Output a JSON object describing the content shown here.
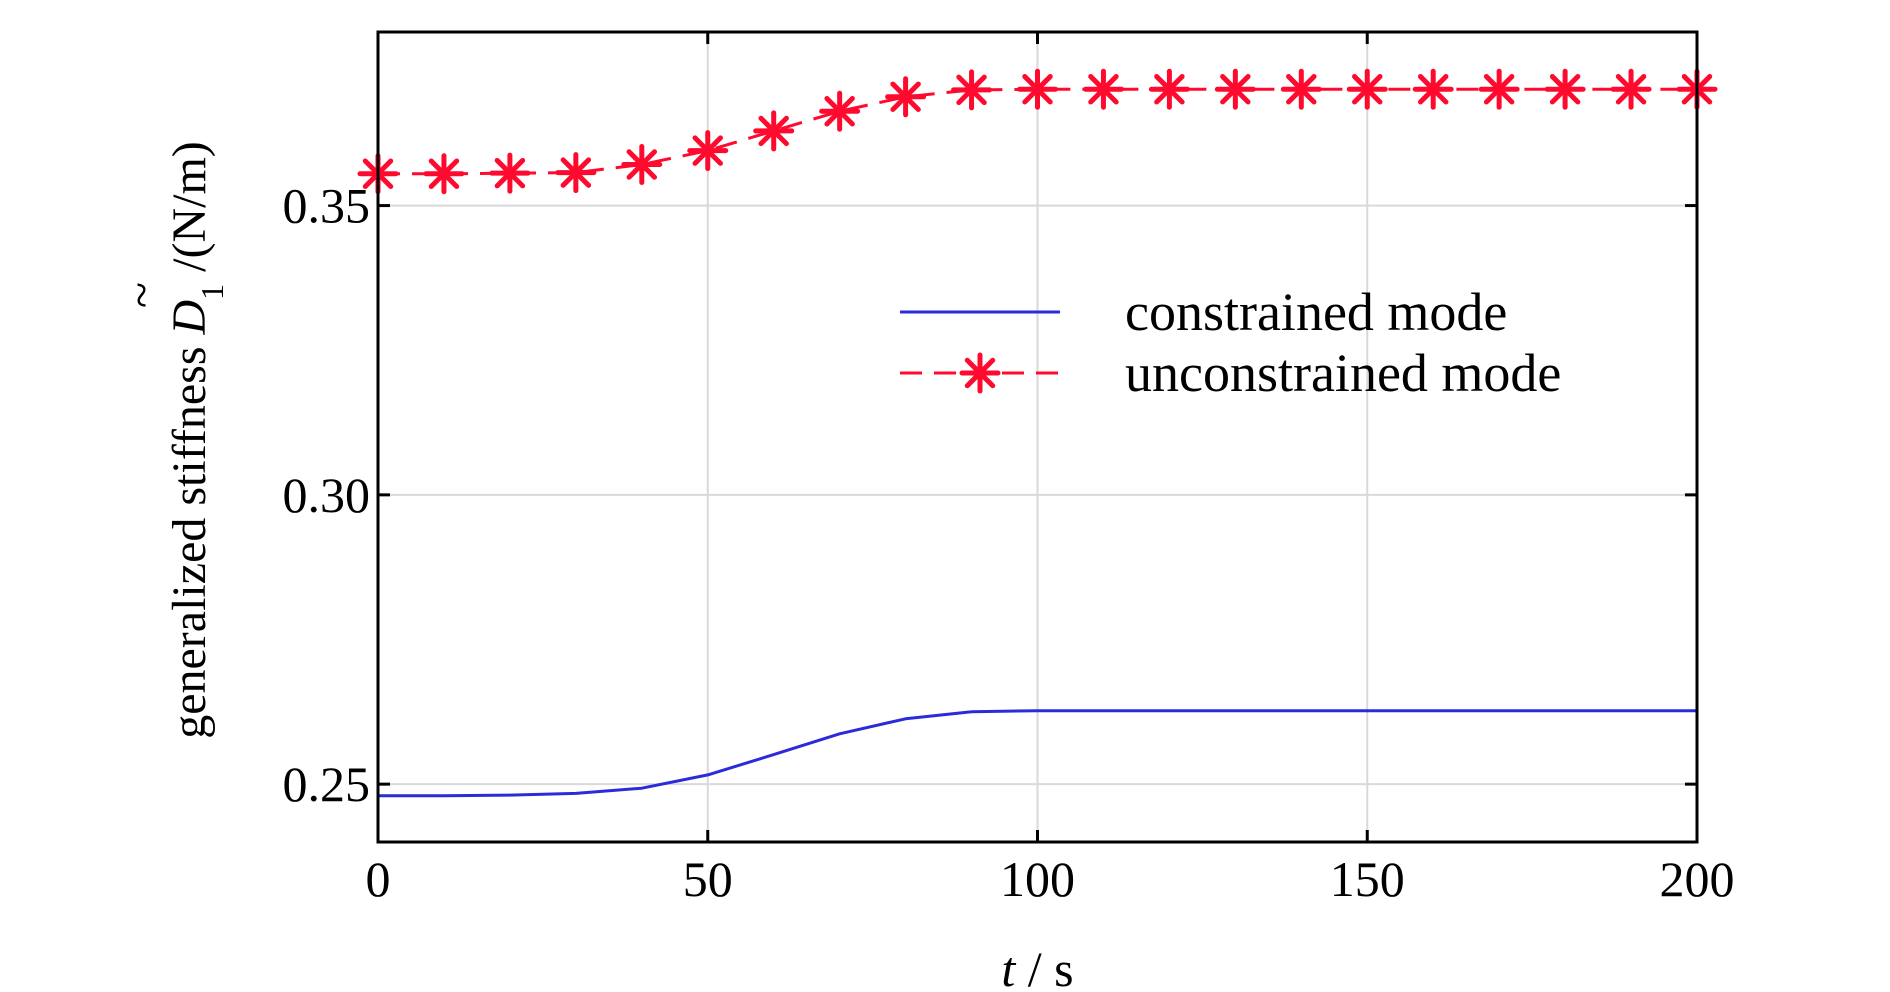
{
  "chart_data": {
    "type": "line",
    "xlabel": {
      "var": "t",
      "sep": " / ",
      "unit": "s"
    },
    "ylabel": {
      "prefix": "generalized stiffness ",
      "var": "D",
      "tilde": "~",
      "sub": "1",
      "suffix": " /(N/m)"
    },
    "xlim": [
      0,
      200
    ],
    "ylim": [
      0.24,
      0.38
    ],
    "x_ticks": [
      "0",
      "50",
      "100",
      "150",
      "200"
    ],
    "y_ticks": [
      "0.25",
      "0.30",
      "0.35"
    ],
    "grid": true,
    "legend_position": "center-right",
    "series": [
      {
        "name": "constrained mode",
        "color": "#2b2bd9",
        "style": "solid",
        "marker": "none",
        "x": [
          0,
          10,
          20,
          30,
          40,
          50,
          60,
          70,
          80,
          90,
          100,
          110,
          120,
          130,
          140,
          150,
          160,
          170,
          180,
          190,
          200
        ],
        "y": [
          0.248,
          0.248,
          0.2481,
          0.2484,
          0.2493,
          0.2516,
          0.2551,
          0.2587,
          0.2613,
          0.2625,
          0.2627,
          0.2627,
          0.2627,
          0.2627,
          0.2627,
          0.2627,
          0.2627,
          0.2627,
          0.2627,
          0.2627,
          0.2627
        ]
      },
      {
        "name": "unconstrained mode",
        "color": "#ff0a2e",
        "style": "dashed",
        "marker": "asterisk",
        "x": [
          0,
          10,
          20,
          30,
          40,
          50,
          60,
          70,
          80,
          90,
          100,
          110,
          120,
          130,
          140,
          150,
          160,
          170,
          180,
          190,
          200
        ],
        "y": [
          0.3555,
          0.3555,
          0.3556,
          0.3557,
          0.3571,
          0.3595,
          0.3629,
          0.3663,
          0.3688,
          0.37,
          0.3701,
          0.3701,
          0.3701,
          0.3701,
          0.3701,
          0.3701,
          0.3701,
          0.3701,
          0.3701,
          0.3701,
          0.3701
        ]
      }
    ]
  }
}
